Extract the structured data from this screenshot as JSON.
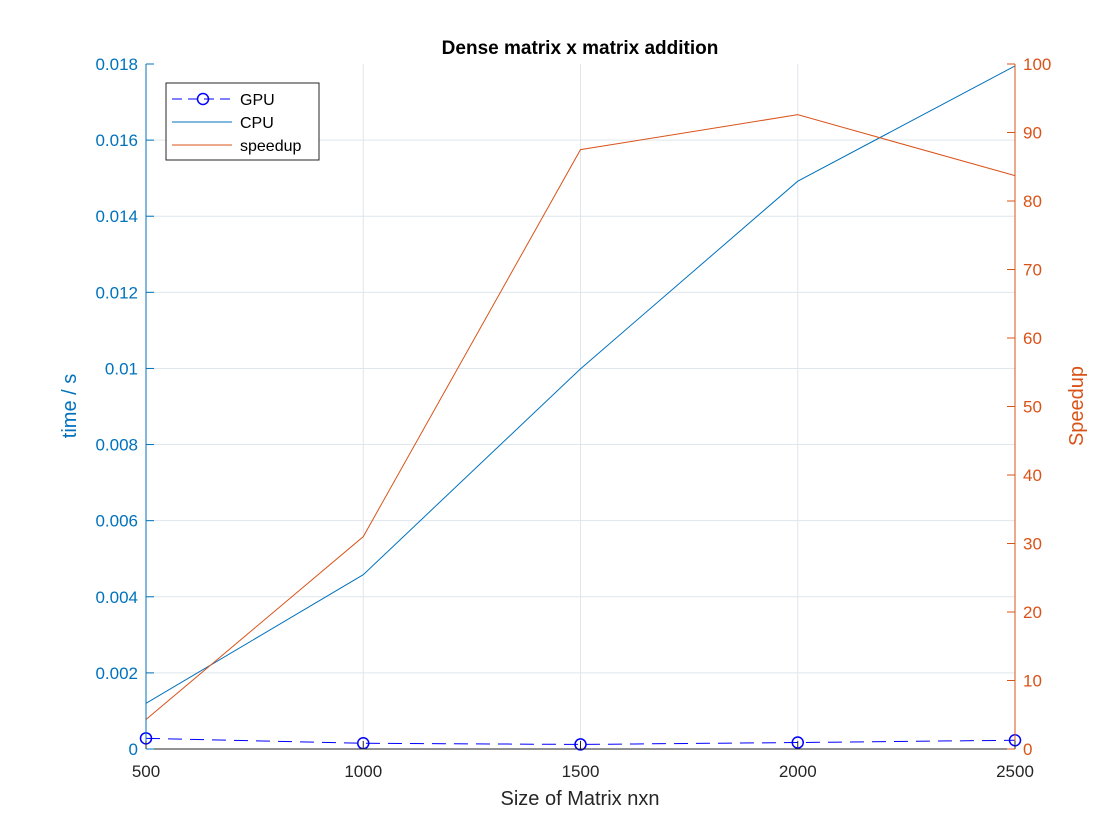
{
  "chart_data": {
    "type": "line",
    "title": "Dense matrix x matrix addition",
    "xlabel": "Size of Matrix nxn",
    "ylabel_left": "time / s",
    "ylabel_right": "Speedup",
    "x": [
      500,
      1000,
      1500,
      2000,
      2500
    ],
    "xlim": [
      500,
      2500
    ],
    "xticks": [
      "500",
      "1000",
      "1500",
      "2000",
      "2500"
    ],
    "ylim_left": [
      0,
      0.018
    ],
    "yticks_left": [
      "0",
      "0.002",
      "0.004",
      "0.006",
      "0.008",
      "0.01",
      "0.012",
      "0.014",
      "0.016",
      "0.018"
    ],
    "ylim_right": [
      0,
      100
    ],
    "yticks_right": [
      "0",
      "10",
      "20",
      "30",
      "40",
      "50",
      "60",
      "70",
      "80",
      "90",
      "100"
    ],
    "grid": true,
    "legend_position": "top-left",
    "series": [
      {
        "name": "GPU",
        "axis": "left",
        "color": "#0000FF",
        "style": "dashed",
        "marker": "circle",
        "values": [
          0.00028,
          0.00015,
          0.00012,
          0.00017,
          0.00023
        ]
      },
      {
        "name": "CPU",
        "axis": "left",
        "color": "#0072BD",
        "style": "solid",
        "marker": "none",
        "values": [
          0.0012,
          0.00458,
          0.00999,
          0.01492,
          0.01795
        ]
      },
      {
        "name": "speedup",
        "axis": "right",
        "color": "#D95319",
        "style": "solid",
        "marker": "none",
        "values": [
          4.3,
          31,
          87.5,
          92.6,
          83.7
        ]
      }
    ]
  }
}
